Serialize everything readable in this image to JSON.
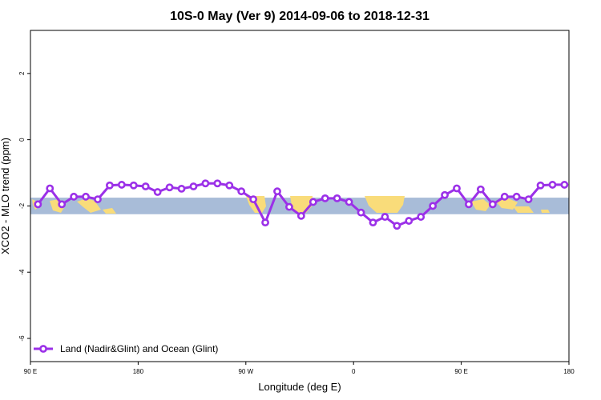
{
  "chart_data": {
    "type": "line",
    "title": "10S-0 May (Ver 9)   2014-09-06 to 2018-12-31",
    "xlabel": "Longitude (deg E)",
    "ylabel": "XCO2 - MLO trend (ppm)",
    "xlim": [
      90,
      450
    ],
    "ylim": [
      -6.7,
      3.3
    ],
    "x_ticks": [
      {
        "value": 90,
        "label": "90 E"
      },
      {
        "value": 162,
        "label": "180"
      },
      {
        "value": 234,
        "label": "90 W"
      },
      {
        "value": 306,
        "label": "0"
      },
      {
        "value": 378,
        "label": "90 E"
      },
      {
        "value": 450,
        "label": "180"
      }
    ],
    "y_ticks": [
      {
        "value": 2,
        "label": "2"
      },
      {
        "value": 0,
        "label": "0"
      },
      {
        "value": -2,
        "label": "-2"
      },
      {
        "value": -4,
        "label": "-4"
      },
      {
        "value": -6,
        "label": "-6"
      }
    ],
    "background_band": {
      "ymin": -2.25,
      "ymax": -1.75,
      "ocean_color": "#a8bcd8",
      "land_color": "#f9dc7a"
    },
    "series": [
      {
        "name": "Land (Nadir&Glint) and Ocean (Glint)",
        "color": "#9b30e8",
        "x": [
          95,
          103,
          111,
          119,
          127,
          135,
          143,
          151,
          159,
          167,
          175,
          183,
          191,
          199,
          207,
          215,
          223,
          231,
          239,
          247,
          255,
          263,
          271,
          279,
          287,
          295,
          303,
          311,
          319,
          327,
          335,
          343,
          351,
          359,
          367,
          375,
          383,
          391,
          399,
          407,
          415,
          423,
          431,
          439,
          447
        ],
        "values": [
          -1.95,
          -1.47,
          -1.95,
          -1.72,
          -1.72,
          -1.8,
          -1.38,
          -1.36,
          -1.38,
          -1.41,
          -1.58,
          -1.44,
          -1.48,
          -1.41,
          -1.32,
          -1.32,
          -1.38,
          -1.56,
          -1.8,
          -2.5,
          -1.56,
          -2.03,
          -2.3,
          -1.88,
          -1.77,
          -1.77,
          -1.88,
          -2.2,
          -2.5,
          -2.33,
          -2.6,
          -2.45,
          -2.33,
          -2.0,
          -1.67,
          -1.47,
          -1.95,
          -1.5,
          -1.95,
          -1.72,
          -1.72,
          -1.8,
          -1.38,
          -1.36,
          -1.36
        ]
      }
    ],
    "legend_position": "bottom-left",
    "grid": false
  }
}
